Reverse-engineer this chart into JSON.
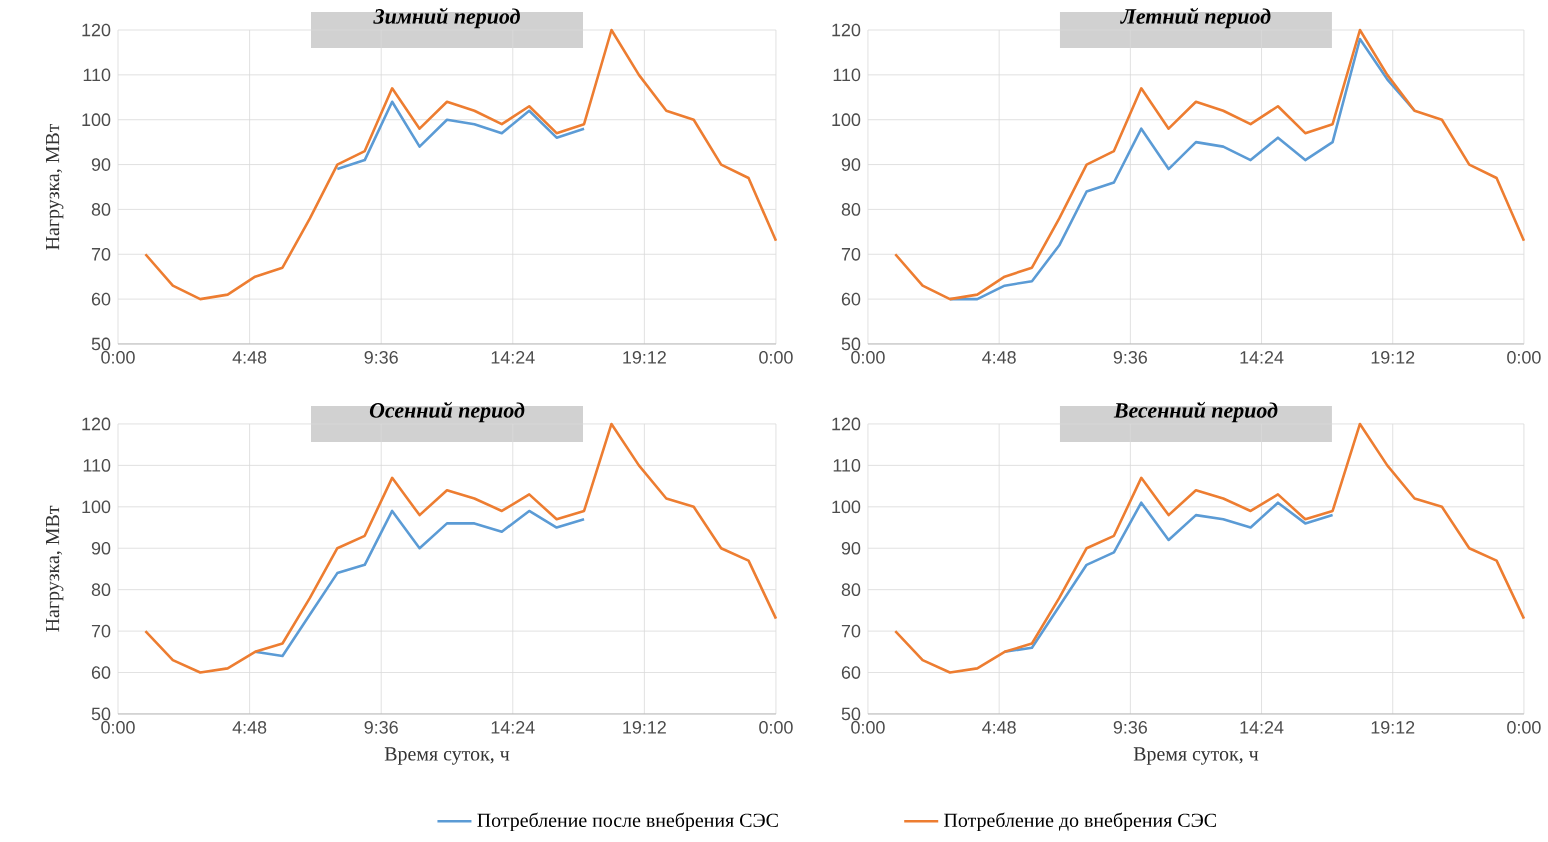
{
  "chart_data": [
    {
      "type": "line",
      "title": "*Зимний период*",
      "ylabel": "Нагрузка, МВт",
      "x": [
        1,
        2,
        3,
        4,
        5,
        6,
        7,
        8,
        9,
        10,
        11,
        12,
        13,
        14,
        15,
        16,
        17,
        18,
        19,
        20,
        21,
        22,
        23,
        24
      ],
      "xlim": [
        0,
        24
      ],
      "ylim": [
        50,
        120
      ],
      "xticks": [
        {
          "value": 0,
          "label": "0:00"
        },
        {
          "value": 4.8,
          "label": "4:48"
        },
        {
          "value": 9.6,
          "label": "9:36"
        },
        {
          "value": 14.4,
          "label": "14:24"
        },
        {
          "value": 19.2,
          "label": "19:12"
        },
        {
          "value": 24,
          "label": "0:00"
        }
      ],
      "yticks": [
        50,
        60,
        70,
        80,
        90,
        100,
        110,
        120
      ],
      "grid": true,
      "series": [
        {
          "color": "#5b9bd5",
          "values": [
            null,
            null,
            null,
            null,
            null,
            null,
            null,
            89,
            91,
            104,
            94,
            100,
            99,
            97,
            102,
            96,
            98,
            null,
            null,
            null,
            null,
            null,
            null,
            null
          ]
        },
        {
          "color": "#ed7d31",
          "values": [
            70,
            63,
            60,
            61,
            65,
            67,
            78,
            90,
            93,
            107,
            98,
            104,
            102,
            99,
            103,
            97,
            99,
            120,
            110,
            102,
            100,
            90,
            87,
            73
          ]
        }
      ]
    },
    {
      "type": "line",
      "title": "*Летний период*",
      "x": [
        1,
        2,
        3,
        4,
        5,
        6,
        7,
        8,
        9,
        10,
        11,
        12,
        13,
        14,
        15,
        16,
        17,
        18,
        19,
        20,
        21,
        22,
        23,
        24
      ],
      "xlim": [
        0,
        24
      ],
      "ylim": [
        50,
        120
      ],
      "xticks": [
        {
          "value": 0,
          "label": "0:00"
        },
        {
          "value": 4.8,
          "label": "4:48"
        },
        {
          "value": 9.6,
          "label": "9:36"
        },
        {
          "value": 14.4,
          "label": "14:24"
        },
        {
          "value": 19.2,
          "label": "19:12"
        },
        {
          "value": 24,
          "label": "0:00"
        }
      ],
      "yticks": [
        50,
        60,
        70,
        80,
        90,
        100,
        110,
        120
      ],
      "grid": true,
      "series": [
        {
          "color": "#5b9bd5",
          "values": [
            null,
            null,
            60,
            60,
            63,
            64,
            72,
            84,
            86,
            98,
            89,
            95,
            94,
            91,
            96,
            91,
            95,
            118,
            109,
            102,
            null,
            null,
            null,
            null
          ]
        },
        {
          "color": "#ed7d31",
          "values": [
            70,
            63,
            60,
            61,
            65,
            67,
            78,
            90,
            93,
            107,
            98,
            104,
            102,
            99,
            103,
            97,
            99,
            120,
            110,
            102,
            100,
            90,
            87,
            73
          ]
        }
      ]
    },
    {
      "type": "line",
      "title": "*Осенний период*",
      "xlabel": "Время суток, ч",
      "ylabel": "Нагрузка, МВт",
      "x": [
        1,
        2,
        3,
        4,
        5,
        6,
        7,
        8,
        9,
        10,
        11,
        12,
        13,
        14,
        15,
        16,
        17,
        18,
        19,
        20,
        21,
        22,
        23,
        24
      ],
      "xlim": [
        0,
        24
      ],
      "ylim": [
        50,
        120
      ],
      "xticks": [
        {
          "value": 0,
          "label": "0:00"
        },
        {
          "value": 4.8,
          "label": "4:48"
        },
        {
          "value": 9.6,
          "label": "9:36"
        },
        {
          "value": 14.4,
          "label": "14:24"
        },
        {
          "value": 19.2,
          "label": "19:12"
        },
        {
          "value": 24,
          "label": "0:00"
        }
      ],
      "yticks": [
        50,
        60,
        70,
        80,
        90,
        100,
        110,
        120
      ],
      "grid": true,
      "legend": "bottom",
      "series": [
        {
          "name": "Потребление после внебрения СЭС",
          "color": "#5b9bd5",
          "values": [
            null,
            null,
            null,
            null,
            65,
            64,
            74,
            84,
            86,
            99,
            90,
            96,
            96,
            94,
            99,
            95,
            97,
            null,
            null,
            null,
            null,
            null,
            null,
            null
          ]
        },
        {
          "name": "Потребление до внебрения СЭС",
          "color": "#ed7d31",
          "values": [
            70,
            63,
            60,
            61,
            65,
            67,
            78,
            90,
            93,
            107,
            98,
            104,
            102,
            99,
            103,
            97,
            99,
            120,
            110,
            102,
            100,
            90,
            87,
            73
          ]
        }
      ]
    },
    {
      "type": "line",
      "title": "*Весенний период*",
      "xlabel": "Время суток, ч",
      "x": [
        1,
        2,
        3,
        4,
        5,
        6,
        7,
        8,
        9,
        10,
        11,
        12,
        13,
        14,
        15,
        16,
        17,
        18,
        19,
        20,
        21,
        22,
        23,
        24
      ],
      "xlim": [
        0,
        24
      ],
      "ylim": [
        50,
        120
      ],
      "xticks": [
        {
          "value": 0,
          "label": "0:00"
        },
        {
          "value": 4.8,
          "label": "4:48"
        },
        {
          "value": 9.6,
          "label": "9:36"
        },
        {
          "value": 14.4,
          "label": "14:24"
        },
        {
          "value": 19.2,
          "label": "19:12"
        },
        {
          "value": 24,
          "label": "0:00"
        }
      ],
      "yticks": [
        50,
        60,
        70,
        80,
        90,
        100,
        110,
        120
      ],
      "grid": true,
      "series": [
        {
          "color": "#5b9bd5",
          "values": [
            null,
            null,
            null,
            null,
            65,
            66,
            76,
            86,
            89,
            101,
            92,
            98,
            97,
            95,
            101,
            96,
            98,
            null,
            null,
            null,
            null,
            null,
            null,
            null
          ]
        },
        {
          "color": "#ed7d31",
          "values": [
            70,
            63,
            60,
            61,
            65,
            67,
            78,
            90,
            93,
            107,
            98,
            104,
            102,
            99,
            103,
            97,
            99,
            120,
            110,
            102,
            100,
            90,
            87,
            73
          ]
        }
      ]
    }
  ]
}
